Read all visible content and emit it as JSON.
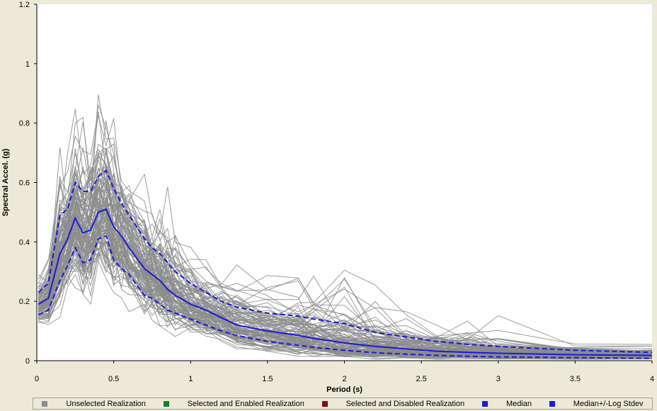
{
  "chart_data": {
    "type": "line",
    "title": "",
    "xlabel": "Period (s)",
    "ylabel": "Spectral Accel. (g)",
    "xlim": [
      0,
      4
    ],
    "ylim": [
      0,
      1.2
    ],
    "x_ticks": [
      "0",
      "0.5",
      "1",
      "1.5",
      "2",
      "2.5",
      "3",
      "3.5",
      "4"
    ],
    "y_ticks": [
      "0",
      "0.2",
      "0.4",
      "0.6",
      "0.8",
      "1",
      "1.2"
    ],
    "grid": false,
    "legend_position": "bottom",
    "x": [
      0.01,
      0.075,
      0.15,
      0.2,
      0.25,
      0.3,
      0.35,
      0.4,
      0.45,
      0.5,
      0.55,
      0.6,
      0.7,
      0.75,
      0.8,
      0.85,
      0.9,
      1.0,
      1.1,
      1.2,
      1.3,
      1.5,
      1.7,
      1.8,
      2.0,
      2.2,
      2.4,
      2.6,
      2.8,
      3.0,
      3.5,
      4.0
    ],
    "series": [
      {
        "name": "Median",
        "color": "#1a1adc",
        "style": "solid",
        "values": [
          0.19,
          0.21,
          0.36,
          0.41,
          0.48,
          0.43,
          0.44,
          0.5,
          0.51,
          0.45,
          0.42,
          0.38,
          0.31,
          0.29,
          0.27,
          0.24,
          0.22,
          0.19,
          0.17,
          0.145,
          0.12,
          0.1,
          0.085,
          0.075,
          0.06,
          0.048,
          0.04,
          0.032,
          0.028,
          0.025,
          0.02,
          0.018
        ]
      },
      {
        "name": "Median+/-Log Stdev",
        "color": "#1a1adc",
        "style": "dashed",
        "values": [
          0.23,
          0.26,
          0.49,
          0.51,
          0.6,
          0.57,
          0.57,
          0.62,
          0.64,
          0.58,
          0.53,
          0.49,
          0.41,
          0.38,
          0.36,
          0.33,
          0.3,
          0.26,
          0.23,
          0.2,
          0.18,
          0.16,
          0.15,
          0.14,
          0.125,
          0.095,
          0.08,
          0.065,
          0.055,
          0.048,
          0.035,
          0.028
        ]
      },
      {
        "name": "Median+/-Log Stdev",
        "color": "#1a1adc",
        "style": "dashed",
        "values": [
          0.155,
          0.17,
          0.27,
          0.32,
          0.38,
          0.33,
          0.34,
          0.41,
          0.42,
          0.34,
          0.31,
          0.29,
          0.22,
          0.21,
          0.19,
          0.17,
          0.16,
          0.14,
          0.12,
          0.1,
          0.085,
          0.065,
          0.052,
          0.045,
          0.035,
          0.027,
          0.022,
          0.018,
          0.015,
          0.013,
          0.01,
          0.008
        ]
      }
    ],
    "realizations": {
      "name": "Unselected Realization",
      "color": "#8c8c8c",
      "count": 110
    }
  },
  "legend": {
    "items": [
      {
        "label": "Unselected Realization",
        "color": "#8c8c8c"
      },
      {
        "label": "Selected and Enabled Realization",
        "color": "#12812a"
      },
      {
        "label": "Selected and Disabled Realization",
        "color": "#7a1010"
      },
      {
        "label": "Median",
        "color": "#1a1adc"
      },
      {
        "label": "Median+/-Log Stdev",
        "color": "#1a1adc"
      }
    ]
  }
}
